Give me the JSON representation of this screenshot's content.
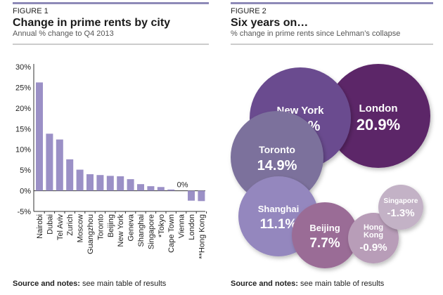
{
  "colors": {
    "accent_bar": "#8e8ab8",
    "bar": "#9b90c6",
    "rule": "#999999"
  },
  "chart_data": [
    {
      "type": "bar",
      "figure_label": "FIGURE 1",
      "title": "Change in prime rents by city",
      "subtitle": "Annual % change to Q4 2013",
      "categories": [
        "Nairobi",
        "Dubai",
        "Tel Aviv",
        "Zurich",
        "Moscow",
        "Guangzhou",
        "Toronto",
        "Beijing",
        "New York",
        "Geneva",
        "Shanghai",
        "Singapore",
        "*Tokyo",
        "Cape Town",
        "Vienna",
        "London",
        "**Hong Kong"
      ],
      "values": [
        26.2,
        13.8,
        12.4,
        7.6,
        5.1,
        4.0,
        3.8,
        3.6,
        3.5,
        2.8,
        1.6,
        1.1,
        0.9,
        0.3,
        0,
        -2.4,
        -2.5
      ],
      "annotations": [
        {
          "category": "Vienna",
          "text": "0%"
        }
      ],
      "yticks": [
        "30%",
        "25%",
        "20%",
        "15%",
        "10%",
        "5%",
        "0%",
        "-5%"
      ],
      "ylim": [
        -5,
        30
      ],
      "grid": false,
      "source_label": "Source and notes:",
      "source_text": " see main table of results"
    },
    {
      "type": "bubble",
      "figure_label": "FIGURE 2",
      "title": "Six years on…",
      "subtitle": "% change in prime rents since Lehman’s collapse",
      "bubbles": [
        {
          "name": "London",
          "label": "20.9%",
          "value": 20.9,
          "color": "#5b2568"
        },
        {
          "name": "New York",
          "label": "19.6%",
          "value": 19.6,
          "color": "#6a4b8f"
        },
        {
          "name": "Toronto",
          "label": "14.9%",
          "value": 14.9,
          "color": "#7b719c"
        },
        {
          "name": "Shanghai",
          "label": "11.1%",
          "value": 11.1,
          "color": "#9487be"
        },
        {
          "name": "Beijing",
          "label": "7.7%",
          "value": 7.7,
          "color": "#9a6c96"
        },
        {
          "name": "Hong Kong",
          "label": "-0.9%",
          "value": -0.9,
          "color": "#b89db8"
        },
        {
          "name": "Singapore",
          "label": "-1.3%",
          "value": -1.3,
          "color": "#c3b2c6"
        }
      ],
      "source_label": "Source and notes:",
      "source_text": " see main table of results"
    }
  ]
}
